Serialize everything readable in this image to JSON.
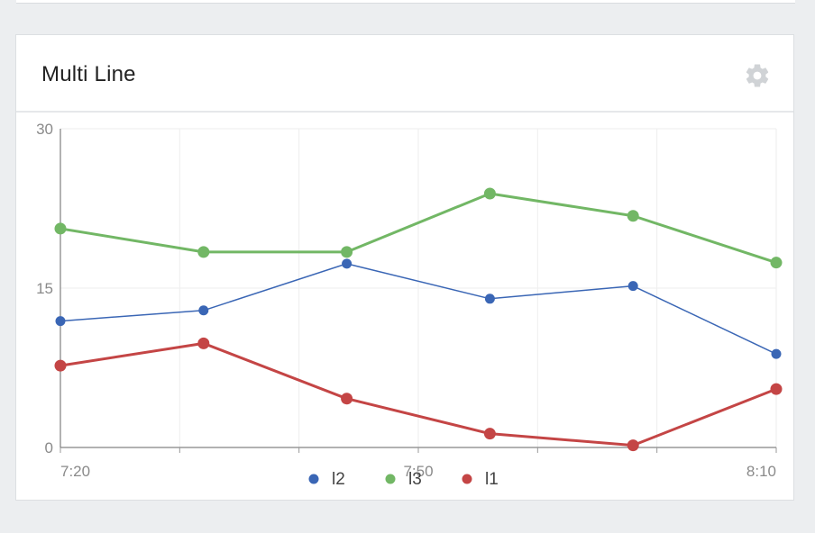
{
  "card": {
    "title": "Multi Line"
  },
  "icons": {
    "settings": "gear-icon"
  },
  "chart_data": {
    "type": "line",
    "x": [
      "7:20",
      "7:30",
      "7:40",
      "7:50",
      "8:00",
      "8:10"
    ],
    "x_tick_labels": [
      "7:20",
      "7:50",
      "8:10"
    ],
    "ylim": [
      0,
      30
    ],
    "y_ticks": [
      0,
      15,
      30
    ],
    "grid": true,
    "legend_position": "bottom-center",
    "series": [
      {
        "name": "l2",
        "color": "#3a66b5",
        "values": [
          11.9,
          12.9,
          17.3,
          14.0,
          15.2,
          8.8
        ]
      },
      {
        "name": "l3",
        "color": "#72b765",
        "values": [
          20.6,
          18.4,
          18.4,
          23.9,
          21.8,
          17.4
        ]
      },
      {
        "name": "l1",
        "color": "#c44545",
        "values": [
          7.7,
          9.8,
          4.6,
          1.3,
          0.2,
          5.5
        ]
      }
    ]
  }
}
